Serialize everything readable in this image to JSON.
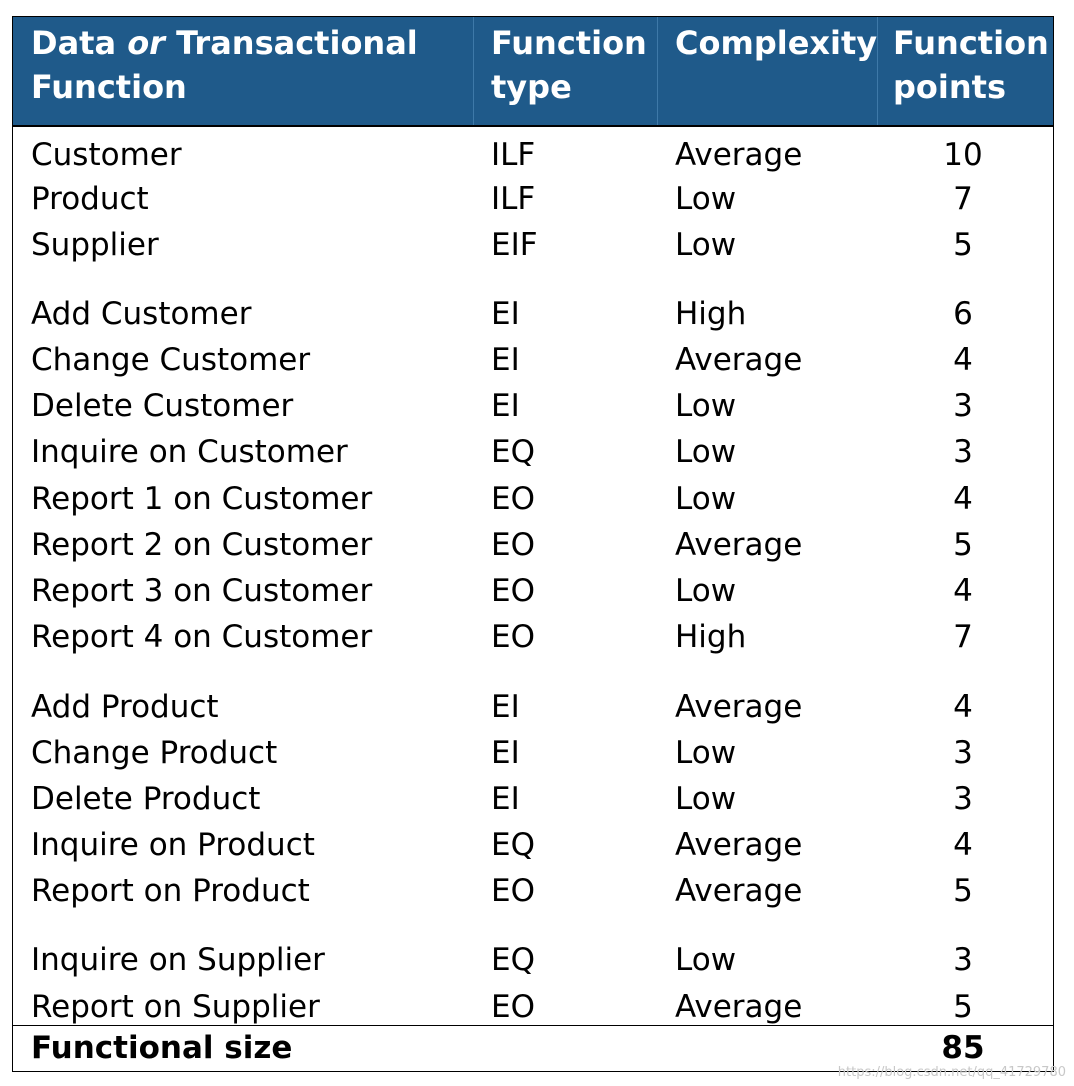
{
  "header": {
    "col1_a": "Data ",
    "col1_or": "or",
    "col1_b": " Transactional",
    "col1_c": "Function",
    "col2_a": "Function",
    "col2_b": "type",
    "col3_a": "Complexity",
    "col4_a": "Function",
    "col4_b": "points"
  },
  "rows": [
    {
      "name": "Customer",
      "type": "ILF",
      "complexity": "Average",
      "points": "10"
    },
    {
      "name": "Product",
      "type": "ILF",
      "complexity": "Low",
      "points": "7"
    },
    {
      "name": "Supplier",
      "type": "EIF",
      "complexity": "Low",
      "points": "5"
    },
    {
      "name": "Add Customer",
      "type": "EI",
      "complexity": "High",
      "points": "6"
    },
    {
      "name": "Change Customer",
      "type": "EI",
      "complexity": "Average",
      "points": "4"
    },
    {
      "name": "Delete Customer",
      "type": "EI",
      "complexity": "Low",
      "points": "3"
    },
    {
      "name": "Inquire on Customer",
      "type": "EQ",
      "complexity": "Low",
      "points": "3"
    },
    {
      "name": "Report 1 on Customer",
      "type": "EO",
      "complexity": "Low",
      "points": "4"
    },
    {
      "name": "Report 2 on Customer",
      "type": "EO",
      "complexity": "Average",
      "points": "5"
    },
    {
      "name": "Report 3 on Customer",
      "type": "EO",
      "complexity": "Low",
      "points": "4"
    },
    {
      "name": "Report 4 on Customer",
      "type": "EO",
      "complexity": "High",
      "points": "7"
    },
    {
      "name": "Add Product",
      "type": "EI",
      "complexity": "Average",
      "points": "4"
    },
    {
      "name": "Change Product",
      "type": "EI",
      "complexity": "Low",
      "points": "3"
    },
    {
      "name": "Delete Product",
      "type": "EI",
      "complexity": "Low",
      "points": "3"
    },
    {
      "name": "Inquire on Product",
      "type": "EQ",
      "complexity": "Average",
      "points": "4"
    },
    {
      "name": "Report on Product",
      "type": "EO",
      "complexity": "Average",
      "points": "5"
    },
    {
      "name": "Inquire on Supplier",
      "type": "EQ",
      "complexity": "Low",
      "points": "3"
    },
    {
      "name": "Report on Supplier",
      "type": "EO",
      "complexity": "Average",
      "points": "5"
    }
  ],
  "footer": {
    "label": "Functional size",
    "total": "85"
  },
  "watermark": "https://blog.csdn.net/qq_41729780",
  "colors": {
    "header_bg": "#1f5a8a",
    "header_text": "#ffffff"
  }
}
